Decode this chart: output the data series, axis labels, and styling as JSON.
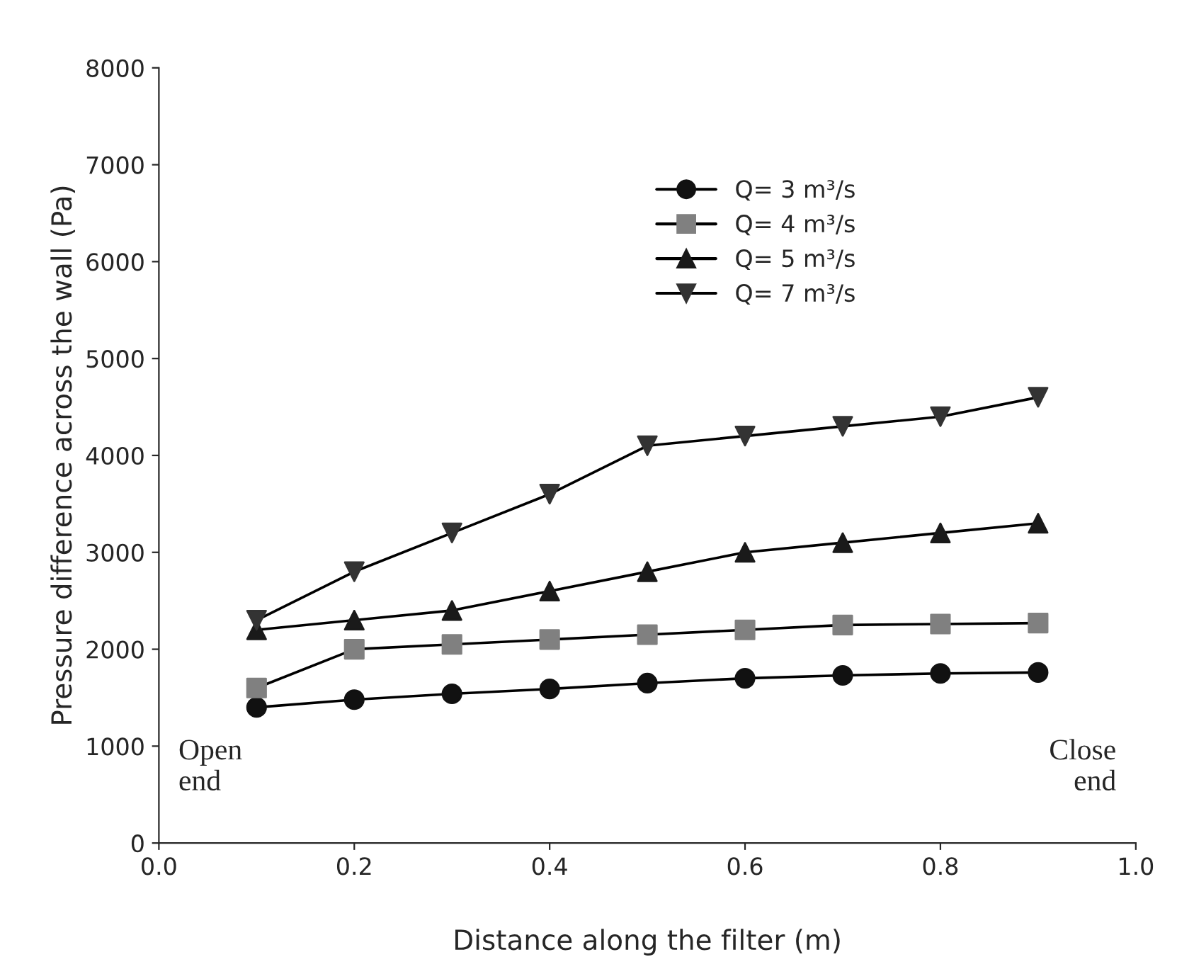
{
  "chart_data": {
    "type": "line",
    "xlabel": "Distance along the filter (m)",
    "ylabel": "Pressure difference across the wall (Pa)",
    "x": [
      0.1,
      0.2,
      0.3,
      0.4,
      0.5,
      0.6,
      0.7,
      0.8,
      0.9
    ],
    "series": [
      {
        "name": "Q= 3 m³/s",
        "color": "#111111",
        "marker": "circle",
        "values": [
          1400,
          1480,
          1540,
          1590,
          1650,
          1700,
          1730,
          1750,
          1760
        ]
      },
      {
        "name": "Q= 4 m³/s",
        "color": "#808080",
        "marker": "square",
        "values": [
          1600,
          2000,
          2050,
          2100,
          2150,
          2200,
          2250,
          2260,
          2270
        ]
      },
      {
        "name": "Q= 5 m³/s",
        "color": "#1a1a1a",
        "marker": "triangle",
        "values": [
          2200,
          2300,
          2400,
          2600,
          2800,
          3000,
          3100,
          3200,
          3300
        ]
      },
      {
        "name": "Q= 7 m³/s",
        "color": "#333333",
        "marker": "triangle_down",
        "values": [
          2300,
          2800,
          3200,
          3600,
          4100,
          4200,
          4300,
          4400,
          4600
        ]
      }
    ],
    "xlim": [
      0.0,
      1.0
    ],
    "xticks": [
      {
        "value": 0.0,
        "label": "0.0"
      },
      {
        "value": 0.2,
        "label": "0.2"
      },
      {
        "value": 0.4,
        "label": "0.4"
      },
      {
        "value": 0.6,
        "label": "0.6"
      },
      {
        "value": 0.8,
        "label": "0.8"
      },
      {
        "value": 1.0,
        "label": "1.0"
      }
    ],
    "ylim": [
      0,
      8000
    ],
    "yticks": [
      0,
      1000,
      2000,
      3000,
      4000,
      5000,
      6000,
      7000,
      8000
    ],
    "grid": false,
    "legend": "top right",
    "line_style": "solid",
    "annotations": [
      "Open\nend",
      "Close\nend"
    ]
  }
}
